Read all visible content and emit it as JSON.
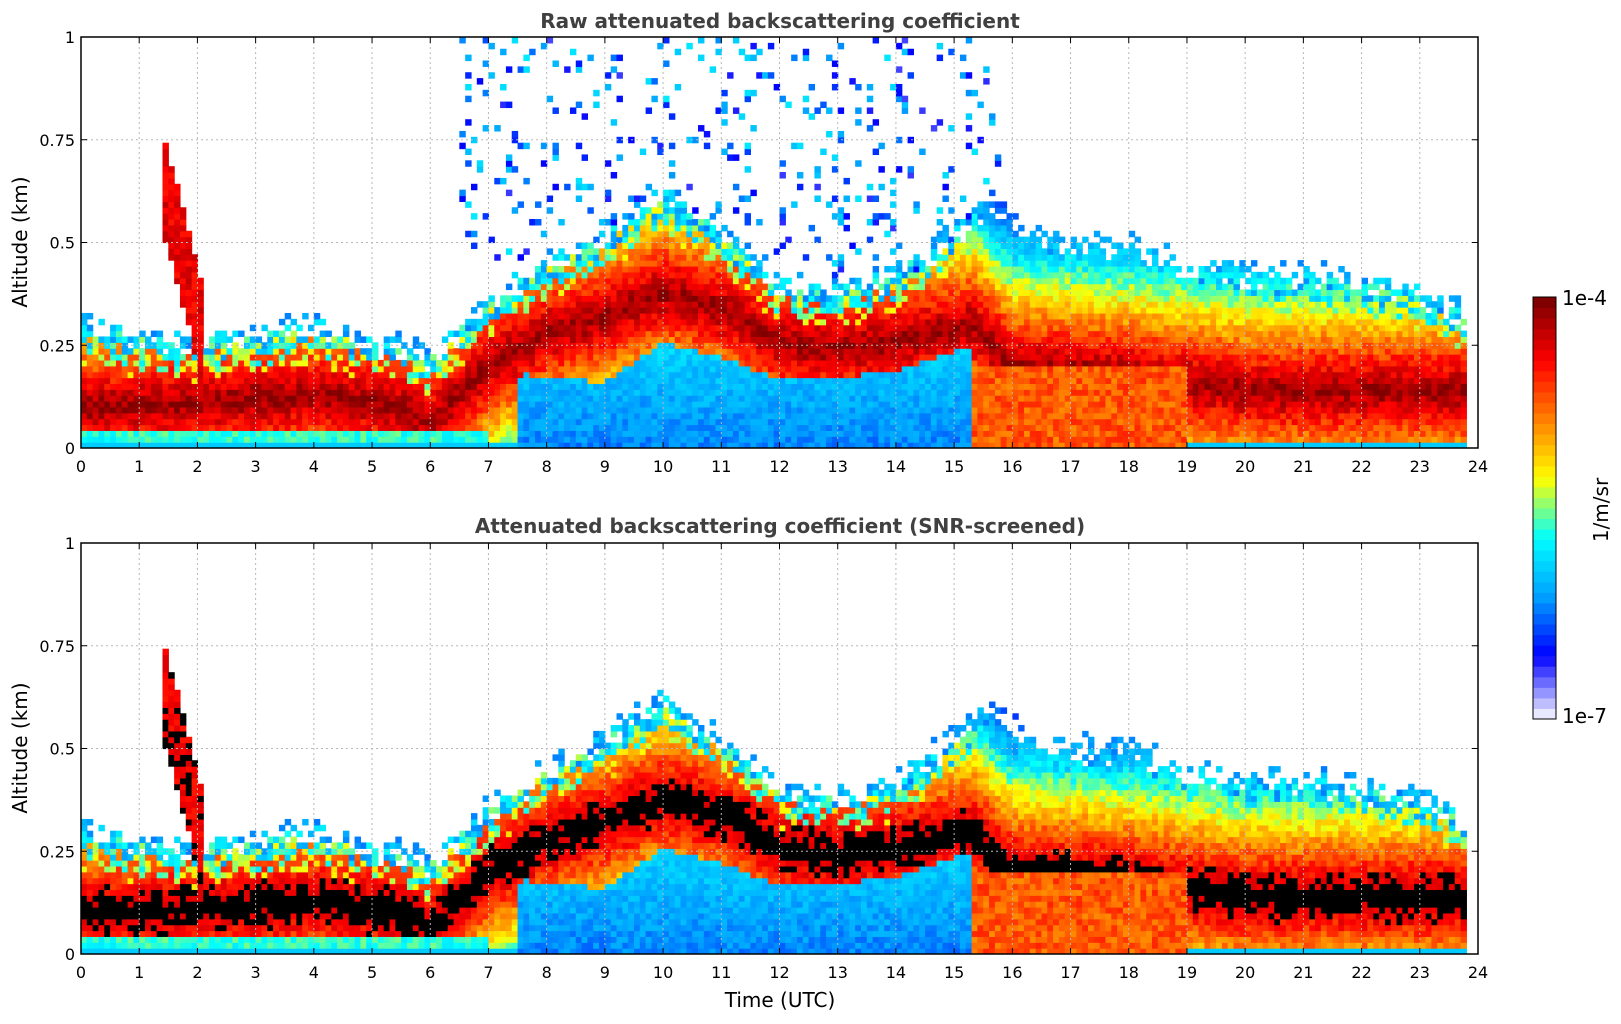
{
  "chart_data": [
    {
      "type": "heatmap",
      "title": "Raw attenuated backscattering coefficient",
      "xlabel": "",
      "ylabel": "Altitude (km)",
      "xlim": [
        0,
        24
      ],
      "ylim": [
        0,
        1
      ],
      "xticks": [
        "0",
        "1",
        "2",
        "3",
        "4",
        "5",
        "6",
        "7",
        "8",
        "9",
        "10",
        "11",
        "12",
        "13",
        "14",
        "15",
        "16",
        "17",
        "18",
        "19",
        "20",
        "21",
        "22",
        "23",
        "24"
      ],
      "yticks": [
        "0",
        "0.25",
        "0.5",
        "0.75",
        "1"
      ],
      "grid": true,
      "screened": false
    },
    {
      "type": "heatmap",
      "title": "Attenuated backscattering coefficient (SNR-screened)",
      "xlabel": "Time (UTC)",
      "ylabel": "Altitude (km)",
      "xlim": [
        0,
        24
      ],
      "ylim": [
        0,
        1
      ],
      "xticks": [
        "0",
        "1",
        "2",
        "3",
        "4",
        "5",
        "6",
        "7",
        "8",
        "9",
        "10",
        "11",
        "12",
        "13",
        "14",
        "15",
        "16",
        "17",
        "18",
        "19",
        "20",
        "21",
        "22",
        "23",
        "24"
      ],
      "yticks": [
        "0",
        "0.25",
        "0.5",
        "0.75",
        "1"
      ],
      "grid": true,
      "screened": true
    }
  ],
  "colorbar": {
    "label": "1/m/sr",
    "max_label": "1e-4",
    "min_label": "1e-7",
    "scale": "log",
    "range": [
      1e-07,
      0.0001
    ],
    "colors": [
      "#e8e8ff",
      "#0000ff",
      "#00a0ff",
      "#00ffff",
      "#ffff00",
      "#ff8000",
      "#ff0000",
      "#800000"
    ]
  },
  "data_extent_hours": 23.8
}
